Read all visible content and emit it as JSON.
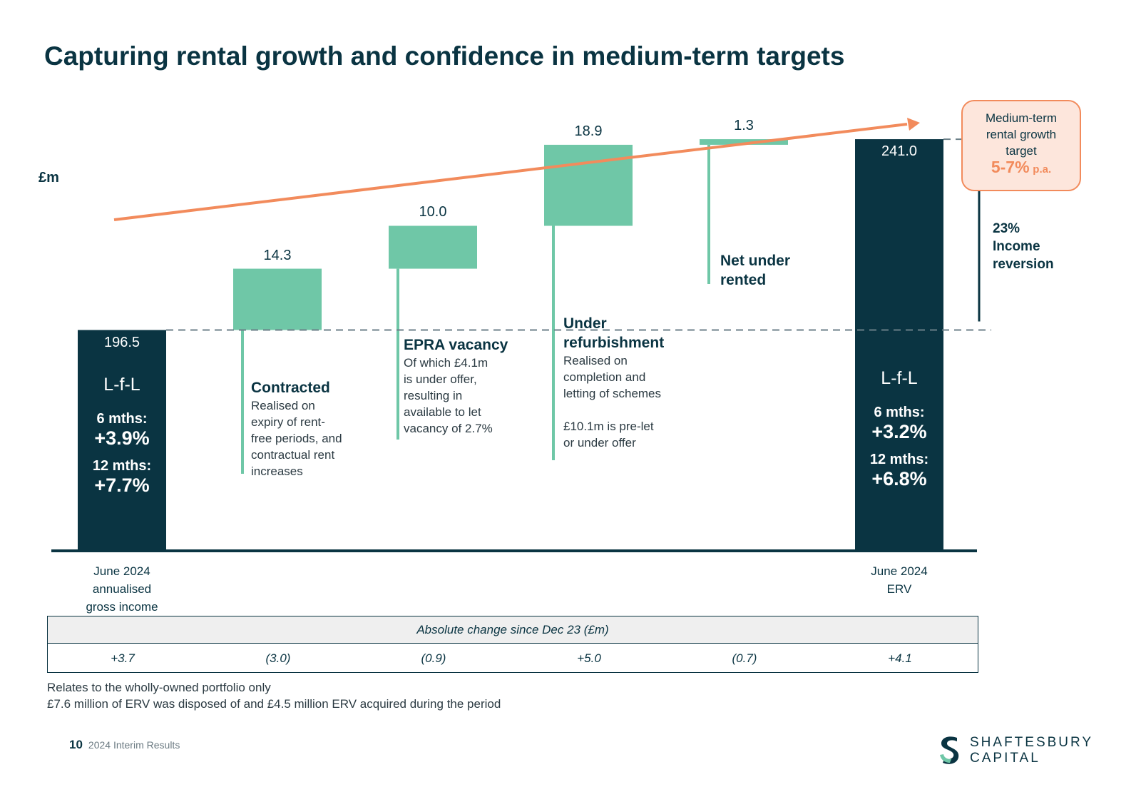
{
  "page": {
    "title": "Capturing rental growth and confidence in medium-term targets",
    "unit_label": "£m",
    "page_number": "10",
    "footer_text": "2024 Interim Results",
    "logo": {
      "line1": "SHAFTESBURY",
      "line2": "CAPITAL"
    }
  },
  "colors": {
    "dark": "#0a3442",
    "green": "#6fc7a7",
    "orange": "#f28b5c",
    "dash": "#6b7f88"
  },
  "chart_data": {
    "type": "bar",
    "subtype": "waterfall",
    "title": "Capturing rental growth and confidence in medium-term targets",
    "ylabel": "£m",
    "ylim": [
      145,
      250
    ],
    "categories": [
      "June 2024 annualised gross income",
      "Contracted",
      "EPRA vacancy",
      "Under refurbishment",
      "Net under rented",
      "June 2024 ERV"
    ],
    "steps": [
      {
        "kind": "total",
        "name": "June 2024 annualised gross income",
        "value": 196.5,
        "label": "196.5"
      },
      {
        "kind": "increment",
        "name": "Contracted",
        "value": 14.3,
        "label": "14.3"
      },
      {
        "kind": "increment",
        "name": "EPRA vacancy",
        "value": 10.0,
        "label": "10.0"
      },
      {
        "kind": "increment",
        "name": "Under refurbishment",
        "value": 18.9,
        "label": "18.9"
      },
      {
        "kind": "increment",
        "name": "Net under rented",
        "value": 1.3,
        "label": "1.3"
      },
      {
        "kind": "total",
        "name": "June 2024 ERV",
        "value": 241.0,
        "label": "241.0"
      }
    ],
    "x_labels": [
      {
        "lines": [
          "June 2024",
          "annualised",
          "gross income"
        ]
      },
      {
        "lines": [
          "June 2024",
          "ERV"
        ]
      }
    ],
    "lfl_start": {
      "heading": "L-f-L",
      "six_label": "6 mths:",
      "six_value": "+3.9%",
      "twelve_label": "12 mths:",
      "twelve_value": "+7.7%"
    },
    "lfl_end": {
      "heading": "L-f-L",
      "six_label": "6 mths:",
      "six_value": "+3.2%",
      "twelve_label": "12 mths:",
      "twelve_value": "+6.8%"
    },
    "annotations": {
      "contracted": {
        "title": "Contracted",
        "lines": [
          "Realised on",
          "expiry of rent-",
          "free periods, and",
          "contractual rent",
          "increases"
        ]
      },
      "epra": {
        "title": "EPRA vacancy",
        "lines": [
          "Of which £4.1m",
          "is under offer,",
          "resulting in",
          "available to let",
          "vacancy of 2.7%"
        ]
      },
      "refurb": {
        "title_lines": [
          "Under",
          "refurbishment"
        ],
        "lines": [
          "Realised on",
          "completion and",
          "letting of schemes"
        ],
        "extra_lines": [
          "£10.1m is pre-let",
          "or under offer"
        ]
      },
      "underrented": {
        "title_lines": [
          "Net under",
          "rented"
        ]
      }
    },
    "target_box": {
      "lines": [
        "Medium-term",
        "rental growth",
        "target"
      ],
      "value": "5-7%",
      "suffix": "p.a."
    },
    "reversion": {
      "lines": [
        "23%",
        "Income",
        "reversion"
      ]
    },
    "table": {
      "header": "Absolute change since Dec 23 (£m)",
      "values": [
        "+3.7",
        "(3.0)",
        "(0.9)",
        "+5.0",
        "(0.7)",
        "+4.1"
      ]
    },
    "notes": [
      "Relates to the wholly-owned portfolio only",
      "£7.6 million of ERV was disposed of and £4.5 million ERV acquired during the period"
    ]
  }
}
